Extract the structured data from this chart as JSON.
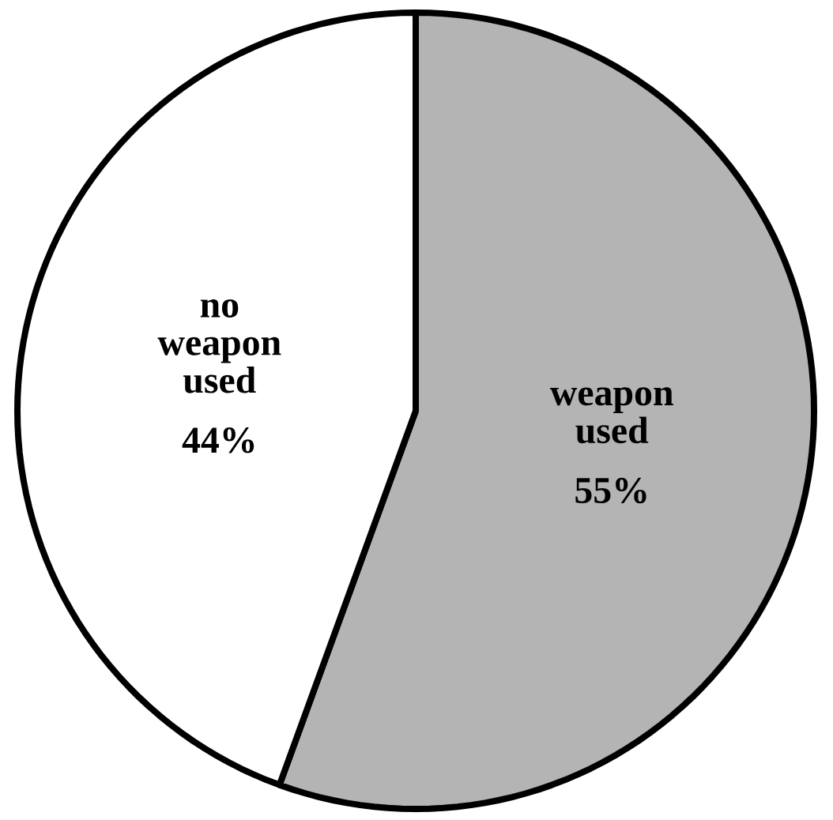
{
  "chart_data": {
    "type": "pie",
    "categories": [
      "weapon used",
      "no weapon used"
    ],
    "values": [
      55,
      44
    ],
    "value_labels": [
      "55%",
      "44%"
    ],
    "colors": [
      "#b4b4b4",
      "#ffffff"
    ]
  }
}
